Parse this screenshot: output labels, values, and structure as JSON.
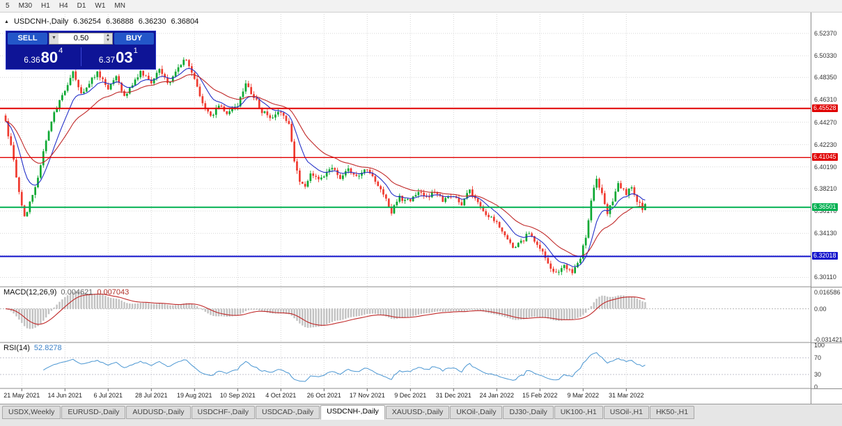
{
  "toolbar": {
    "periods": [
      "5",
      "M30",
      "H1",
      "H4",
      "D1",
      "W1",
      "MN"
    ]
  },
  "chart": {
    "header": {
      "arrow": "▲",
      "title": "USDCNH-,Daily",
      "open": "6.36254",
      "high": "6.36888",
      "low": "6.36230",
      "close": "6.36804"
    },
    "price_axis": [
      "6.52370",
      "6.50330",
      "6.48350",
      "6.46310",
      "6.44270",
      "6.42230",
      "6.40190",
      "6.38210",
      "6.36170",
      "6.34130",
      "6.32090",
      "6.30110"
    ],
    "levels": [
      {
        "value": 6.45528,
        "label": "6.45528",
        "color": "#e00000",
        "width": 2
      },
      {
        "value": 6.41045,
        "label": "6.41045",
        "color": "#e00000",
        "width": 1.3
      },
      {
        "value": 6.36501,
        "label": "6.36501",
        "color": "#00b050",
        "width": 2
      },
      {
        "value": 6.32018,
        "label": "6.32018",
        "color": "#1414cc",
        "width": 2
      }
    ],
    "dates": [
      "21 May 2021",
      "14 Jun 2021",
      "6 Jul 2021",
      "28 Jul 2021",
      "19 Aug 2021",
      "10 Sep 2021",
      "4 Oct 2021",
      "26 Oct 2021",
      "17 Nov 2021",
      "9 Dec 2021",
      "31 Dec 2021",
      "24 Jan 2022",
      "15 Feb 2022",
      "9 Mar 2022",
      "31 Mar 2022"
    ]
  },
  "trade_panel": {
    "sell_label": "SELL",
    "buy_label": "BUY",
    "volume": "0.50",
    "bid": {
      "big": "6.36",
      "pips": "80",
      "point": "4"
    },
    "ask": {
      "big": "6.37",
      "pips": "03",
      "point": "1"
    }
  },
  "macd": {
    "name": "MACD(12,26,9)",
    "value1": "0.004621",
    "value2": "0.007043",
    "axis": [
      "0.016586",
      "0.00",
      "-0.031421"
    ]
  },
  "rsi": {
    "name": "RSI(14)",
    "value": "52.8278",
    "axis": [
      "100",
      "70",
      "30",
      "0"
    ]
  },
  "tabs": [
    {
      "label": "USDX,Weekly",
      "active": false
    },
    {
      "label": "EURUSD-,Daily",
      "active": false
    },
    {
      "label": "AUDUSD-,Daily",
      "active": false
    },
    {
      "label": "USDCHF-,Daily",
      "active": false
    },
    {
      "label": "USDCAD-,Daily",
      "active": false
    },
    {
      "label": "USDCNH-,Daily",
      "active": true
    },
    {
      "label": "XAUUSD-,Daily",
      "active": false
    },
    {
      "label": "UKOil-,Daily",
      "active": false
    },
    {
      "label": "DJ30-,Daily",
      "active": false
    },
    {
      "label": "UK100-,H1",
      "active": false
    },
    {
      "label": "USOil-,H1",
      "active": false
    },
    {
      "label": "HK50-,H1",
      "active": false
    }
  ],
  "colors": {
    "grid": "#d6d6d6",
    "bull": "#0ca832",
    "bear": "#ef3b30",
    "ma_fast": "#2430c8",
    "ma_slow": "#c02828",
    "macd_hist": "#c2c2c2",
    "macd_signal": "#c02828",
    "rsi": "#4a96d2"
  },
  "chart_data": {
    "type": "candlestick",
    "symbol": "USDCNH",
    "timeframe": "Daily",
    "ohlc_current": {
      "open": 6.36254,
      "high": 6.36888,
      "low": 6.3623,
      "close": 6.36804
    },
    "y_range": [
      6.2925,
      6.5415
    ],
    "candle_count": 238,
    "date_tick_indices": [
      6,
      22,
      38,
      54,
      70,
      86,
      102,
      118,
      134,
      150,
      166,
      182,
      198,
      214,
      230
    ],
    "ma_periods": [
      10,
      24
    ],
    "macd_params": [
      12,
      26,
      9
    ],
    "macd_current": [
      0.004621,
      0.007043
    ],
    "macd_axis_range": [
      0.016586,
      -0.031421
    ],
    "rsi_period": 14,
    "rsi_current": 52.8278,
    "levels": [
      6.45528,
      6.41045,
      6.36501,
      6.32018
    ],
    "price_anchors": [
      [
        0,
        6.443
      ],
      [
        3,
        6.408
      ],
      [
        5,
        6.377
      ],
      [
        7,
        6.357
      ],
      [
        9,
        6.368
      ],
      [
        12,
        6.392
      ],
      [
        15,
        6.425
      ],
      [
        18,
        6.452
      ],
      [
        22,
        6.472
      ],
      [
        25,
        6.489
      ],
      [
        28,
        6.468
      ],
      [
        31,
        6.479
      ],
      [
        34,
        6.489
      ],
      [
        38,
        6.473
      ],
      [
        41,
        6.486
      ],
      [
        44,
        6.465
      ],
      [
        47,
        6.478
      ],
      [
        50,
        6.489
      ],
      [
        54,
        6.479
      ],
      [
        57,
        6.492
      ],
      [
        60,
        6.478
      ],
      [
        63,
        6.488
      ],
      [
        66,
        6.5
      ],
      [
        68,
        6.494
      ],
      [
        70,
        6.482
      ],
      [
        73,
        6.461
      ],
      [
        76,
        6.447
      ],
      [
        79,
        6.457
      ],
      [
        82,
        6.451
      ],
      [
        86,
        6.459
      ],
      [
        89,
        6.477
      ],
      [
        92,
        6.466
      ],
      [
        95,
        6.452
      ],
      [
        98,
        6.447
      ],
      [
        102,
        6.452
      ],
      [
        105,
        6.441
      ],
      [
        107,
        6.408
      ],
      [
        109,
        6.388
      ],
      [
        111,
        6.382
      ],
      [
        113,
        6.396
      ],
      [
        116,
        6.39
      ],
      [
        118,
        6.395
      ],
      [
        121,
        6.403
      ],
      [
        124,
        6.391
      ],
      [
        127,
        6.399
      ],
      [
        130,
        6.393
      ],
      [
        134,
        6.399
      ],
      [
        137,
        6.389
      ],
      [
        140,
        6.377
      ],
      [
        143,
        6.361
      ],
      [
        146,
        6.374
      ],
      [
        150,
        6.371
      ],
      [
        153,
        6.38
      ],
      [
        156,
        6.373
      ],
      [
        159,
        6.379
      ],
      [
        162,
        6.372
      ],
      [
        166,
        6.376
      ],
      [
        169,
        6.367
      ],
      [
        172,
        6.38
      ],
      [
        175,
        6.369
      ],
      [
        178,
        6.358
      ],
      [
        182,
        6.351
      ],
      [
        185,
        6.339
      ],
      [
        188,
        6.327
      ],
      [
        191,
        6.334
      ],
      [
        194,
        6.341
      ],
      [
        198,
        6.329
      ],
      [
        201,
        6.314
      ],
      [
        204,
        6.304
      ],
      [
        207,
        6.311
      ],
      [
        210,
        6.305
      ],
      [
        213,
        6.319
      ],
      [
        215,
        6.338
      ],
      [
        217,
        6.372
      ],
      [
        219,
        6.391
      ],
      [
        221,
        6.377
      ],
      [
        223,
        6.36
      ],
      [
        225,
        6.371
      ],
      [
        227,
        6.387
      ],
      [
        230,
        6.377
      ],
      [
        232,
        6.384
      ],
      [
        234,
        6.371
      ],
      [
        236,
        6.364
      ],
      [
        237,
        6.368
      ]
    ]
  }
}
